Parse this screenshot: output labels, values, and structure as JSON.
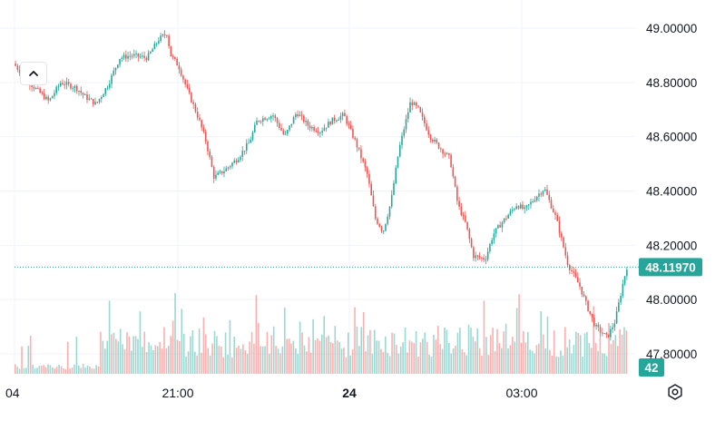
{
  "chart_data": {
    "type": "candlestick",
    "y_axis": {
      "min": 47.7,
      "max": 49.05,
      "ticks": [
        49.0,
        48.8,
        48.6,
        48.4,
        48.2,
        48.0,
        47.8
      ],
      "tick_labels": [
        "49.00000",
        "48.80000",
        "48.60000",
        "48.40000",
        "48.20000",
        "48.00000",
        "47.80000"
      ]
    },
    "x_axis": {
      "tick_labels": [
        {
          "label": "04",
          "bold": false
        },
        {
          "label": "21:00",
          "bold": false
        },
        {
          "label": "24",
          "bold": true
        },
        {
          "label": "03:00",
          "bold": false
        }
      ]
    },
    "price_path": [
      [
        0.0,
        48.87
      ],
      [
        2.0,
        48.8
      ],
      [
        4.5,
        48.73
      ],
      [
        6.0,
        48.8
      ],
      [
        8.0,
        48.78
      ],
      [
        9.0,
        48.75
      ],
      [
        10.5,
        48.72
      ],
      [
        12.0,
        48.79
      ],
      [
        13.5,
        48.89
      ],
      [
        15.0,
        48.9
      ],
      [
        17.0,
        48.89
      ],
      [
        18.5,
        48.96
      ],
      [
        19.5,
        48.98
      ],
      [
        20.0,
        48.9
      ],
      [
        21.0,
        48.86
      ],
      [
        22.0,
        48.78
      ],
      [
        23.5,
        48.67
      ],
      [
        24.5,
        48.58
      ],
      [
        25.5,
        48.45
      ],
      [
        27.0,
        48.48
      ],
      [
        28.5,
        48.52
      ],
      [
        30.0,
        48.58
      ],
      [
        31.0,
        48.66
      ],
      [
        33.0,
        48.68
      ],
      [
        34.5,
        48.6
      ],
      [
        36.0,
        48.69
      ],
      [
        37.5,
        48.64
      ],
      [
        39.0,
        48.62
      ],
      [
        40.5,
        48.66
      ],
      [
        42.0,
        48.68
      ],
      [
        43.5,
        48.58
      ],
      [
        45.0,
        48.46
      ],
      [
        46.0,
        48.3
      ],
      [
        47.0,
        48.25
      ],
      [
        48.0,
        48.36
      ],
      [
        49.0,
        48.55
      ],
      [
        50.5,
        48.73
      ],
      [
        51.5,
        48.7
      ],
      [
        53.0,
        48.6
      ],
      [
        54.5,
        48.55
      ],
      [
        55.5,
        48.52
      ],
      [
        56.5,
        48.35
      ],
      [
        57.5,
        48.28
      ],
      [
        58.5,
        48.16
      ],
      [
        60.0,
        48.15
      ],
      [
        61.0,
        48.24
      ],
      [
        62.0,
        48.28
      ],
      [
        64.0,
        48.35
      ],
      [
        65.0,
        48.33
      ],
      [
        66.5,
        48.38
      ],
      [
        67.5,
        48.41
      ],
      [
        69.0,
        48.3
      ],
      [
        70.5,
        48.13
      ],
      [
        72.0,
        48.05
      ],
      [
        73.0,
        47.97
      ],
      [
        74.0,
        47.9
      ],
      [
        75.5,
        47.86
      ],
      [
        76.5,
        47.92
      ],
      [
        77.5,
        48.06
      ],
      [
        78.0,
        48.12
      ]
    ],
    "last_price": 48.1197,
    "last_price_label": "48.11970",
    "last_volume_label": "42",
    "grid": true,
    "colors": {
      "up": "#26a69a",
      "down": "#ef5350",
      "line": "#26a69a"
    }
  }
}
